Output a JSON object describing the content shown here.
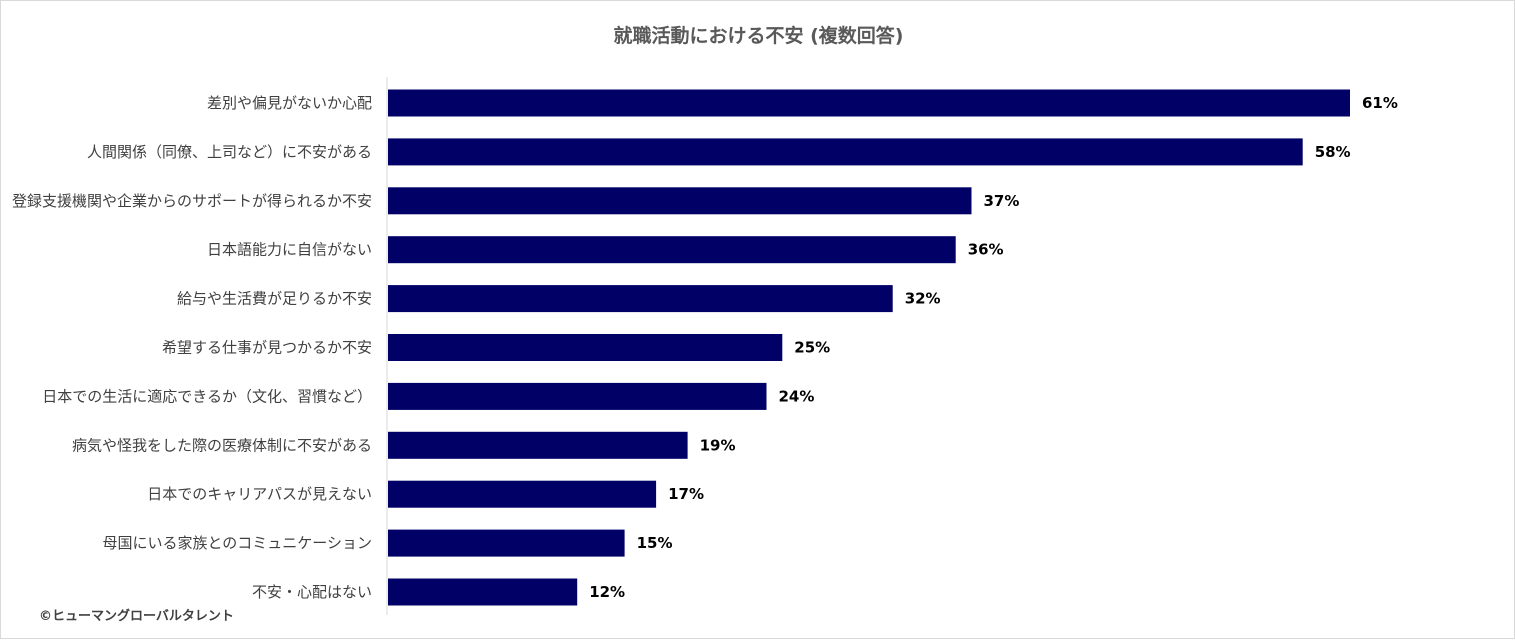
{
  "chart_data": {
    "type": "bar",
    "orientation": "horizontal",
    "title": "就職活動における不安 (複数回答)",
    "categories": [
      "差別や偏見がないか心配",
      "人間関係（同僚、上司など）に不安がある",
      "登録支援機関や企業からのサポートが得られるか不安",
      "日本語能力に自信がない",
      "給与や生活費が足りるか不安",
      "希望する仕事が見つかるか不安",
      "日本での生活に適応できるか（文化、習慣など）",
      "病気や怪我をした際の医療体制に不安がある",
      "日本でのキャリアパスが見えない",
      "母国にいる家族とのコミュニケーション",
      "不安・心配はない"
    ],
    "values": [
      61,
      58,
      37,
      36,
      32,
      25,
      24,
      19,
      17,
      15,
      12
    ],
    "value_labels": [
      "61%",
      "58%",
      "37%",
      "36%",
      "32%",
      "25%",
      "24%",
      "19%",
      "17%",
      "15%",
      "12%"
    ],
    "xlim": [
      0,
      61
    ],
    "grid": false,
    "bar_color": "#000066"
  },
  "credit": "©ヒューマングローバルタレント"
}
